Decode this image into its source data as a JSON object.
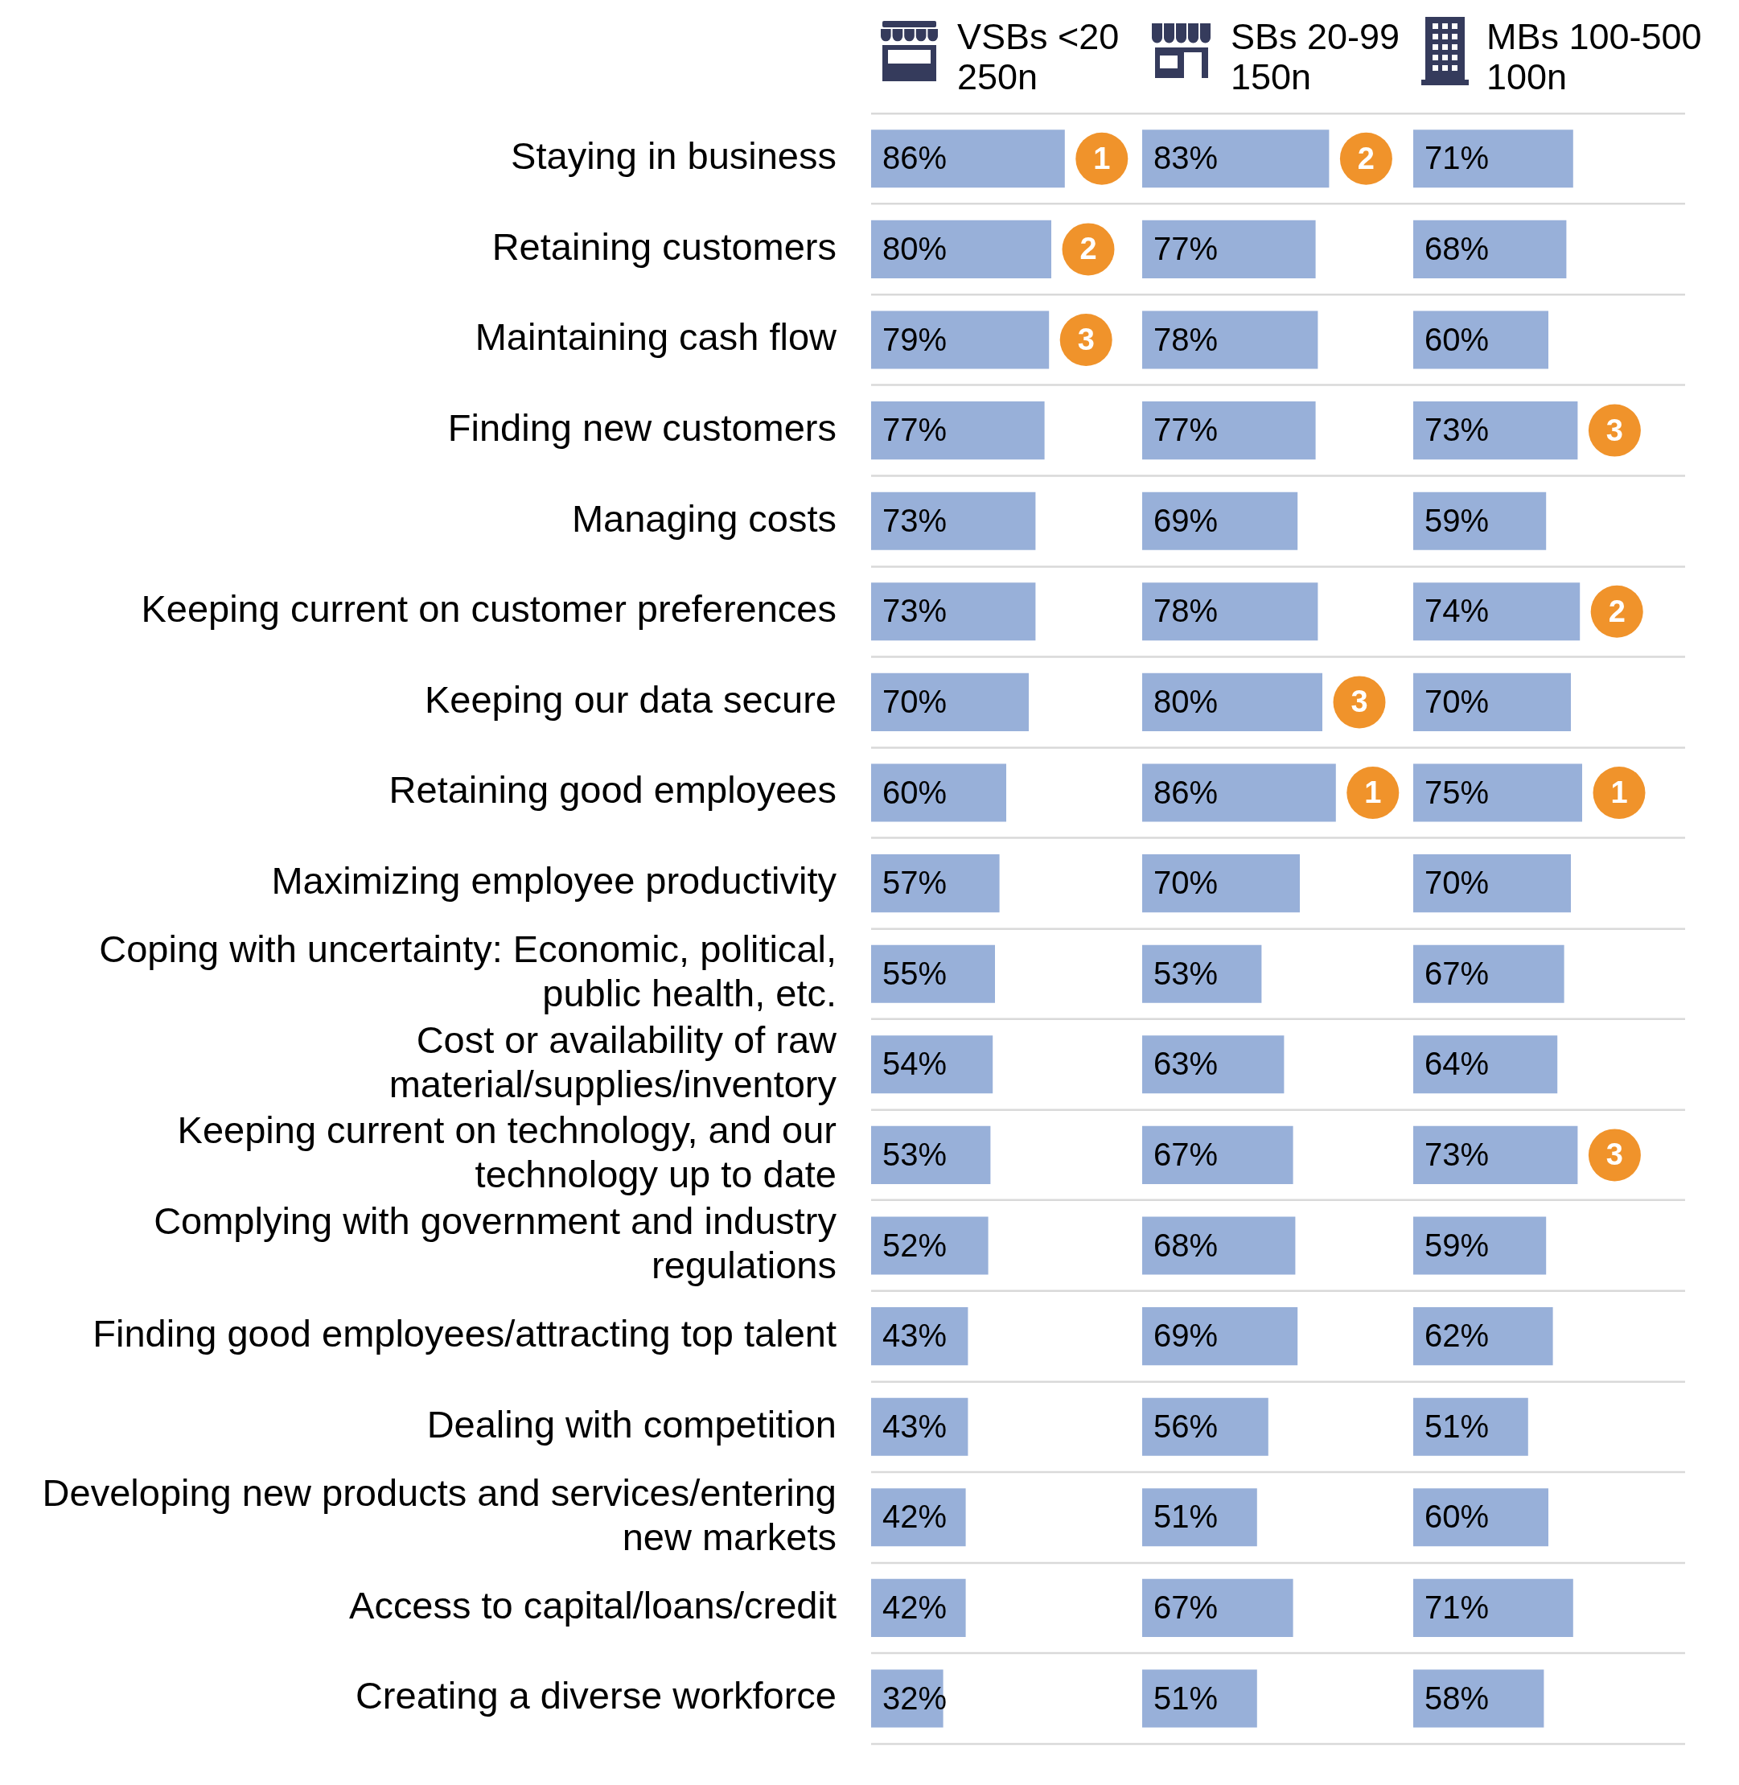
{
  "chart_data": [
    {
      "type": "bar",
      "orientation": "horizontal",
      "title": "VSBs <20",
      "subtitle": "250n",
      "categories": [
        "Staying in business",
        "Retaining customers",
        "Maintaining cash flow",
        "Finding new customers",
        "Managing costs",
        "Keeping current on customer preferences",
        "Keeping our data secure",
        "Retaining good employees",
        "Maximizing employee productivity",
        "Coping with uncertainty: Economic, political, public health, etc.",
        "Cost or availability of raw material/supplies/inventory",
        "Keeping current on technology, and our technology up to date",
        "Complying with government and industry regulations",
        "Finding good employees/attracting top talent",
        "Dealing with competition",
        "Developing new products and services/entering new markets",
        "Access to capital/loans/credit",
        "Creating a diverse workforce"
      ],
      "values": [
        86,
        80,
        79,
        77,
        73,
        73,
        70,
        60,
        57,
        55,
        54,
        53,
        52,
        43,
        43,
        42,
        42,
        32
      ],
      "value_labels": [
        "86%",
        "80%",
        "79%",
        "77%",
        "73%",
        "73%",
        "70%",
        "60%",
        "57%",
        "55%",
        "54%",
        "53%",
        "52%",
        "43%",
        "43%",
        "42%",
        "42%",
        "32%"
      ],
      "color": "#98b0d9",
      "grid": "y",
      "tick_labels": "y",
      "annotations": [
        {
          "text": "1",
          "x": 86,
          "y": "Staying in business"
        },
        {
          "text": "2",
          "x": 80,
          "y": "Retaining customers"
        },
        {
          "text": "3",
          "x": 79,
          "y": "Maintaining cash flow"
        }
      ]
    },
    {
      "type": "bar",
      "orientation": "horizontal",
      "title": "SBs 20-99",
      "subtitle": "150n",
      "categories": [
        "Staying in business",
        "Retaining customers",
        "Maintaining cash flow",
        "Finding new customers",
        "Managing costs",
        "Keeping current on customer preferences",
        "Keeping our data secure",
        "Retaining good employees",
        "Maximizing employee productivity",
        "Coping with uncertainty: Economic, political, public health, etc.",
        "Cost or availability of raw material/supplies/inventory",
        "Keeping current on technology, and our technology up to date",
        "Complying with government and industry regulations",
        "Finding good employees/attracting top talent",
        "Dealing with competition",
        "Developing new products and services/entering new markets",
        "Access to capital/loans/credit",
        "Creating a diverse workforce"
      ],
      "values": [
        83,
        77,
        78,
        77,
        69,
        78,
        80,
        86,
        70,
        53,
        63,
        67,
        68,
        69,
        56,
        51,
        67,
        51
      ],
      "value_labels": [
        "83%",
        "77%",
        "78%",
        "77%",
        "69%",
        "78%",
        "80%",
        "86%",
        "70%",
        "53%",
        "63%",
        "67%",
        "68%",
        "69%",
        "56%",
        "51%",
        "67%",
        "51%"
      ],
      "color": "#98b0d9",
      "grid": "y",
      "tick_labels": false,
      "annotations": [
        {
          "text": "2",
          "x": 83,
          "y": "Staying in business"
        },
        {
          "text": "3",
          "x": 80,
          "y": "Keeping our data secure"
        },
        {
          "text": "1",
          "x": 86,
          "y": "Retaining good employees"
        }
      ]
    },
    {
      "type": "bar",
      "orientation": "horizontal",
      "title": "MBs 100-500",
      "subtitle": "100n",
      "categories": [
        "Staying in business",
        "Retaining customers",
        "Maintaining cash flow",
        "Finding new customers",
        "Managing costs",
        "Keeping current on customer preferences",
        "Keeping our data secure",
        "Retaining good employees",
        "Maximizing employee productivity",
        "Coping with uncertainty: Economic, political, public health, etc.",
        "Cost or availability of raw material/supplies/inventory",
        "Keeping current on technology, and our technology up to date",
        "Complying with government and industry regulations",
        "Finding good employees/attracting top talent",
        "Dealing with competition",
        "Developing new products and services/entering new markets",
        "Access to capital/loans/credit",
        "Creating a diverse workforce"
      ],
      "values": [
        71,
        68,
        60,
        73,
        59,
        74,
        70,
        75,
        70,
        67,
        64,
        73,
        59,
        62,
        51,
        60,
        71,
        58
      ],
      "value_labels": [
        "71%",
        "68%",
        "60%",
        "73%",
        "59%",
        "74%",
        "70%",
        "75%",
        "70%",
        "67%",
        "64%",
        "73%",
        "59%",
        "62%",
        "51%",
        "60%",
        "71%",
        "58%"
      ],
      "color": "#98b0d9",
      "grid": "y",
      "tick_labels": false,
      "annotations": [
        {
          "text": "3",
          "x": 73,
          "y": "Finding new customers"
        },
        {
          "text": "2",
          "x": 74,
          "y": "Keeping current on customer preferences"
        },
        {
          "text": "1",
          "x": 75,
          "y": "Retaining good employees"
        },
        {
          "text": "3",
          "x": 73,
          "y": "Keeping current on technology, and our technology up to date"
        }
      ]
    }
  ]
}
